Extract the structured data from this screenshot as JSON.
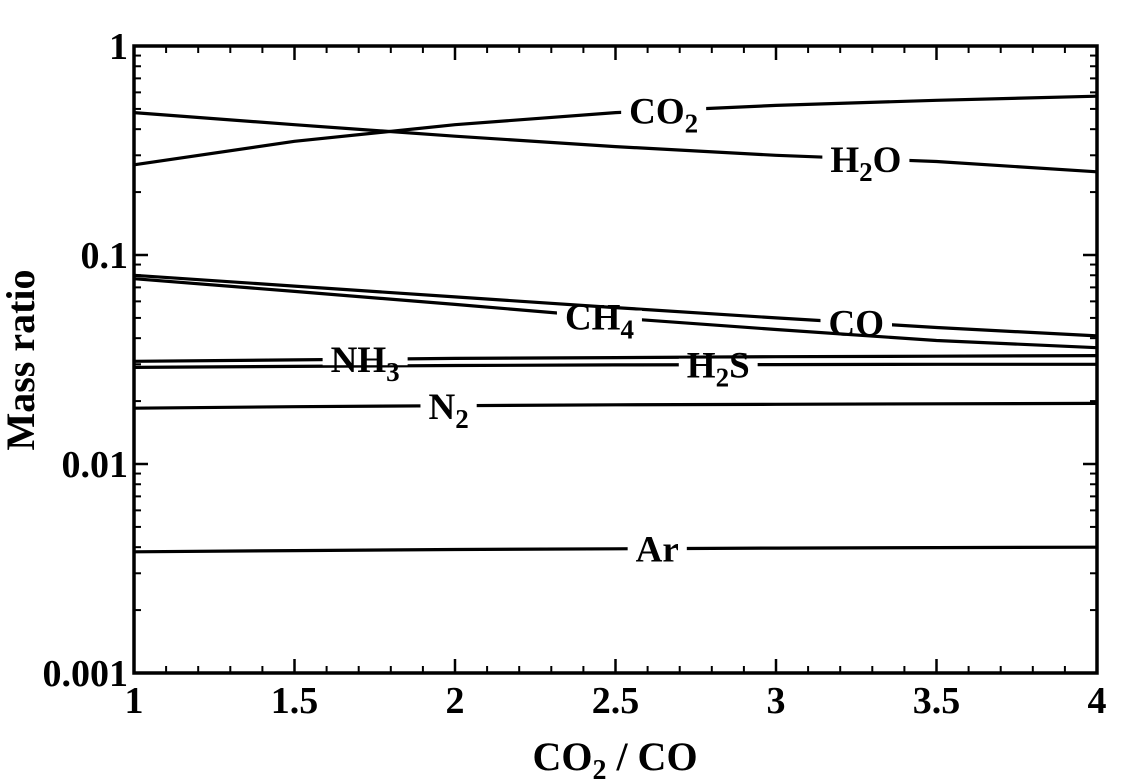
{
  "chart_data": {
    "type": "line",
    "xlabel": "CO2 / CO",
    "ylabel": "Mass ratio",
    "xlim": [
      1,
      4
    ],
    "ylim": [
      0.001,
      1
    ],
    "yscale": "log",
    "grid": false,
    "legend": "inline labels",
    "x_ticks": [
      1,
      1.5,
      2,
      2.5,
      3,
      3.5,
      4
    ],
    "x_tick_labels": [
      "1",
      "1.5",
      "2",
      "2.5",
      "3",
      "3.5",
      "4"
    ],
    "y_ticks": [
      0.001,
      0.01,
      0.1,
      1
    ],
    "y_tick_labels": [
      "0.001",
      "0.01",
      "0.1",
      "1"
    ],
    "x": [
      1,
      1.5,
      2,
      2.5,
      3,
      3.5,
      4
    ],
    "series": [
      {
        "name": "CO2",
        "label_main": "CO",
        "label_sub": "2",
        "label_x": 2.65,
        "values": [
          0.27,
          0.35,
          0.42,
          0.48,
          0.52,
          0.55,
          0.575
        ]
      },
      {
        "name": "H2O",
        "label_main": "H",
        "label_sub": "2",
        "label_tail": "O",
        "label_x": 3.28,
        "values": [
          0.48,
          0.42,
          0.37,
          0.33,
          0.3,
          0.28,
          0.25
        ]
      },
      {
        "name": "CO",
        "label_main": "CO",
        "label_x": 3.25,
        "values": [
          0.08,
          0.071,
          0.063,
          0.056,
          0.05,
          0.045,
          0.041
        ]
      },
      {
        "name": "CH4",
        "label_main": "CH",
        "label_sub": "4",
        "label_x": 2.45,
        "values": [
          0.077,
          0.067,
          0.058,
          0.05,
          0.044,
          0.039,
          0.036
        ]
      },
      {
        "name": "NH3",
        "label_main": "NH",
        "label_sub": "3",
        "label_x": 1.72,
        "values": [
          0.031,
          0.0315,
          0.032,
          0.0323,
          0.0326,
          0.0328,
          0.033
        ]
      },
      {
        "name": "H2S",
        "label_main": "H",
        "label_sub": "2",
        "label_tail": "S",
        "label_x": 2.82,
        "values": [
          0.029,
          0.0293,
          0.0296,
          0.0298,
          0.0299,
          0.03,
          0.03
        ]
      },
      {
        "name": "N2",
        "label_main": "N",
        "label_sub": "2",
        "label_x": 1.98,
        "values": [
          0.0185,
          0.0188,
          0.019,
          0.0192,
          0.0193,
          0.0194,
          0.0195
        ]
      },
      {
        "name": "Ar",
        "label_main": "Ar",
        "label_x": 2.63,
        "values": [
          0.0038,
          0.00385,
          0.0039,
          0.00393,
          0.00396,
          0.00398,
          0.004
        ]
      }
    ]
  }
}
